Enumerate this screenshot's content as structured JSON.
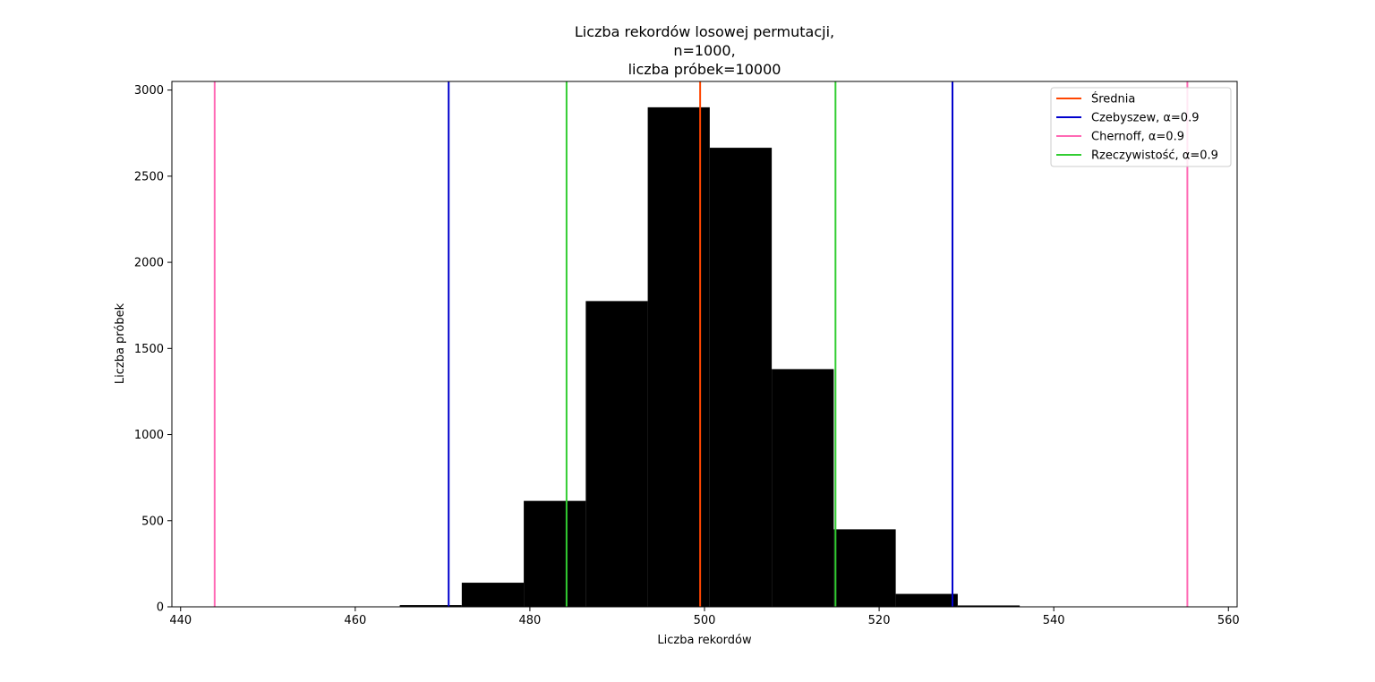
{
  "chart_data": {
    "type": "bar",
    "title": [
      "Liczba rekordów losowej permutacji,",
      "n=1000,",
      "liczba próbek=10000"
    ],
    "xlabel": "Liczba rekordów",
    "ylabel": "Liczba próbek",
    "xlim": [
      439,
      561
    ],
    "ylim": [
      0,
      3050
    ],
    "xticks": [
      440,
      460,
      480,
      500,
      520,
      540,
      560
    ],
    "yticks": [
      0,
      500,
      1000,
      1500,
      2000,
      2500,
      3000
    ],
    "grid": false,
    "legend_position": "top-right",
    "histogram": {
      "color": "#000000",
      "bins": [
        {
          "x0": 465.1,
          "x1": 472.2,
          "count": 10
        },
        {
          "x0": 472.2,
          "x1": 479.3,
          "count": 140
        },
        {
          "x0": 479.3,
          "x1": 486.4,
          "count": 615
        },
        {
          "x0": 486.4,
          "x1": 493.5,
          "count": 1775
        },
        {
          "x0": 493.5,
          "x1": 500.6,
          "count": 2900
        },
        {
          "x0": 500.6,
          "x1": 507.7,
          "count": 2665
        },
        {
          "x0": 507.7,
          "x1": 514.8,
          "count": 1380
        },
        {
          "x0": 514.8,
          "x1": 521.9,
          "count": 450
        },
        {
          "x0": 521.9,
          "x1": 529.0,
          "count": 75
        },
        {
          "x0": 529.0,
          "x1": 536.1,
          "count": 8
        }
      ]
    },
    "vlines": [
      {
        "name": "Średnia",
        "color": "#ff4500",
        "x": [
          499.5
        ]
      },
      {
        "name": "Czebyszew, α=0.9",
        "color": "#0000cd",
        "x": [
          470.7,
          528.4
        ]
      },
      {
        "name": "Chernoff, α=0.9",
        "color": "#ff69b4",
        "x": [
          443.9,
          555.3
        ]
      },
      {
        "name": "Rzeczywistość, α=0.9",
        "color": "#32cd32",
        "x": [
          484.2,
          515.0
        ]
      }
    ]
  }
}
